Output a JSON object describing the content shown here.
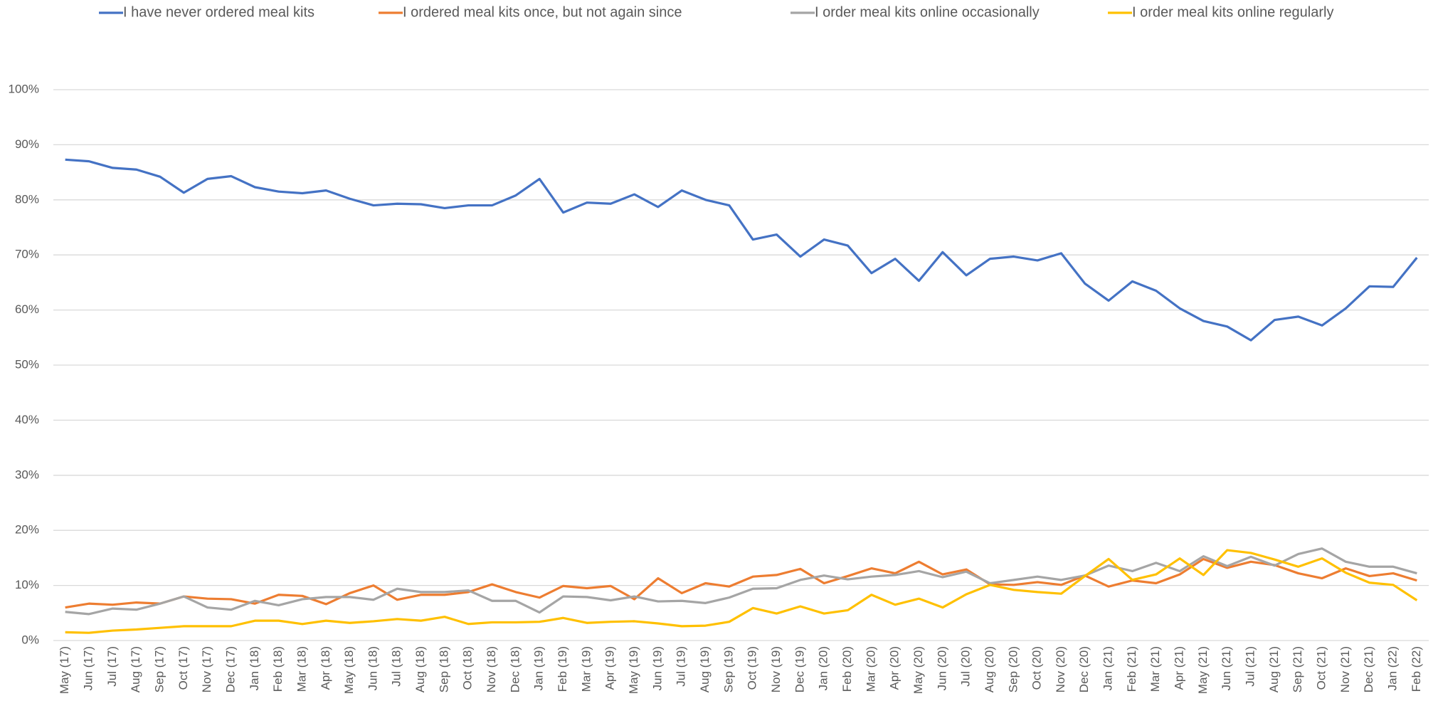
{
  "chart_data": {
    "type": "line",
    "categories": [
      "May (17)",
      "Jun (17)",
      "Jul (17)",
      "Aug (17)",
      "Sep (17)",
      "Oct (17)",
      "Nov (17)",
      "Dec (17)",
      "Jan (18)",
      "Feb (18)",
      "Mar (18)",
      "Apr (18)",
      "May (18)",
      "Jun (18)",
      "Jul (18)",
      "Aug (18)",
      "Sep (18)",
      "Oct (18)",
      "Nov (18)",
      "Dec (18)",
      "Jan (19)",
      "Feb (19)",
      "Mar (19)",
      "Apr (19)",
      "May (19)",
      "Jun (19)",
      "Jul (19)",
      "Aug (19)",
      "Sep (19)",
      "Oct (19)",
      "Nov (19)",
      "Dec (19)",
      "Jan (20)",
      "Feb (20)",
      "Mar (20)",
      "Apr (20)",
      "May (20)",
      "Jun (20)",
      "Jul (20)",
      "Aug (20)",
      "Sep (20)",
      "Oct (20)",
      "Nov (20)",
      "Dec (20)",
      "Jan (21)",
      "Feb (21)",
      "Mar (21)",
      "Apr (21)",
      "May (21)",
      "Jun (21)",
      "Jul (21)",
      "Aug (21)",
      "Sep (21)",
      "Oct (21)",
      "Nov (21)",
      "Dec (21)",
      "Jan (22)",
      "Feb (22)"
    ],
    "series": [
      {
        "name": "I have never ordered meal kits",
        "color": "#4472c4",
        "values": [
          87.3,
          87,
          85.8,
          85.5,
          84.2,
          81.3,
          83.8,
          84.3,
          82.3,
          81.5,
          81.2,
          81.7,
          80.2,
          79,
          79.3,
          79.2,
          78.5,
          79,
          79,
          80.8,
          83.8,
          77.7,
          79.5,
          79.3,
          81,
          78.7,
          81.7,
          80,
          79,
          72.8,
          73.7,
          69.7,
          72.8,
          71.7,
          66.7,
          69.3,
          65.3,
          70.5,
          66.3,
          69.3,
          69.7,
          69,
          70.3,
          64.8,
          61.7,
          65.2,
          63.5,
          60.3,
          58,
          57,
          54.5,
          58.2,
          58.8,
          57.2,
          60.3,
          64.3,
          64.2,
          69.5
        ]
      },
      {
        "name": "I ordered meal kits once, but not again since",
        "color": "#ed7d31",
        "values": [
          6,
          6.7,
          6.5,
          6.9,
          6.7,
          8.0,
          7.6,
          7.5,
          6.7,
          8.3,
          8.1,
          6.6,
          8.6,
          10.0,
          7.4,
          8.3,
          8.3,
          8.8,
          10.2,
          8.8,
          7.8,
          9.9,
          9.5,
          9.9,
          7.5,
          11.3,
          8.6,
          10.4,
          9.8,
          11.6,
          11.9,
          13.0,
          10.4,
          11.7,
          13.1,
          12.2,
          14.3,
          12.0,
          12.9,
          10.2,
          10.1,
          10.6,
          10.1,
          11.8,
          9.8,
          10.9,
          10.4,
          12.0,
          14.8,
          13.2,
          14.3,
          13.7,
          12.2,
          11.3,
          13.1,
          11.7,
          12.2,
          10.9
        ]
      },
      {
        "name": "I order meal kits online occasionally",
        "color": "#a5a5a5",
        "values": [
          5.2,
          4.8,
          5.8,
          5.6,
          6.7,
          8.0,
          6.0,
          5.6,
          7.2,
          6.4,
          7.5,
          7.9,
          7.9,
          7.4,
          9.4,
          8.8,
          8.8,
          9.1,
          7.2,
          7.2,
          5.1,
          8.0,
          7.9,
          7.3,
          8.0,
          7.1,
          7.2,
          6.8,
          7.8,
          9.4,
          9.5,
          11.0,
          11.8,
          11.1,
          11.6,
          11.9,
          12.6,
          11.5,
          12.5,
          10.4,
          11.0,
          11.6,
          11.0,
          11.8,
          13.6,
          12.6,
          14.1,
          12.6,
          15.3,
          13.5,
          15.2,
          13.6,
          15.7,
          16.7,
          14.3,
          13.4,
          13.4,
          12.2
        ]
      },
      {
        "name": "I order meal kits online regularly",
        "color": "#ffc000",
        "values": [
          1.5,
          1.4,
          1.8,
          2.0,
          2.3,
          2.6,
          2.6,
          2.6,
          3.6,
          3.6,
          3.0,
          3.6,
          3.2,
          3.5,
          3.9,
          3.6,
          4.3,
          3.0,
          3.3,
          3.3,
          3.4,
          4.1,
          3.2,
          3.4,
          3.5,
          3.1,
          2.6,
          2.7,
          3.4,
          5.9,
          4.9,
          6.2,
          4.9,
          5.5,
          8.3,
          6.5,
          7.6,
          6.0,
          8.4,
          10.1,
          9.2,
          8.8,
          8.5,
          11.7,
          14.8,
          11.0,
          12.0,
          14.9,
          11.9,
          16.4,
          15.9,
          14.7,
          13.4,
          14.9,
          12.3,
          10.5,
          10.1,
          7.3
        ]
      }
    ],
    "ylim": [
      0,
      100
    ],
    "yticks": [
      {
        "value": 0,
        "label": "0%"
      },
      {
        "value": 10,
        "label": "10%"
      },
      {
        "value": 20,
        "label": "20%"
      },
      {
        "value": 30,
        "label": "30%"
      },
      {
        "value": 40,
        "label": "40%"
      },
      {
        "value": 50,
        "label": "50%"
      },
      {
        "value": 60,
        "label": "60%"
      },
      {
        "value": 70,
        "label": "70%"
      },
      {
        "value": 80,
        "label": "80%"
      },
      {
        "value": 90,
        "label": "90%"
      },
      {
        "value": 100,
        "label": "100%"
      }
    ],
    "grid": true,
    "legend": "top"
  }
}
